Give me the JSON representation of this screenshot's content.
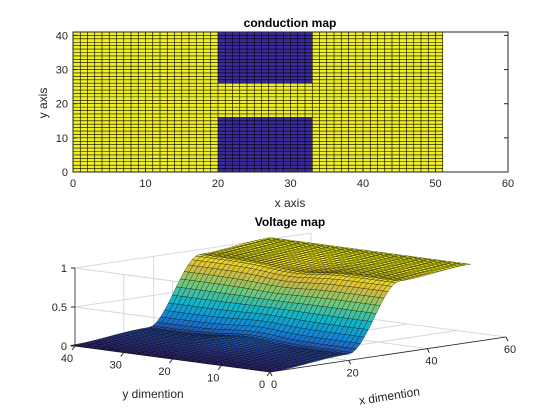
{
  "chart_data": [
    {
      "type": "heatmap",
      "title": "conduction map",
      "xlabel": "x axis",
      "ylabel": "y axis",
      "xlim": [
        0,
        60
      ],
      "ylim": [
        0,
        41
      ],
      "xticks": [
        "0",
        "10",
        "20",
        "30",
        "40",
        "50",
        "60"
      ],
      "yticks": [
        "0",
        "10",
        "20",
        "30",
        "40"
      ],
      "grid_size": {
        "nx": 51,
        "ny": 41
      },
      "values": [
        "high (yellow) conduction",
        "low (blue) conduction"
      ],
      "low_regions": [
        {
          "x": [
            20,
            33
          ],
          "y": [
            26,
            41
          ]
        },
        {
          "x": [
            20,
            33
          ],
          "y": [
            0,
            16
          ]
        }
      ],
      "colors": {
        "high": "#f0f028",
        "low": "#3a2a9a",
        "edge": "#000000"
      }
    },
    {
      "type": "surface",
      "title": "Voltage map",
      "xlabel": "x dimention",
      "ylabel": "y dimention",
      "xlim": [
        0,
        60
      ],
      "ylim": [
        0,
        40
      ],
      "zlim": [
        0,
        1
      ],
      "xticks": [
        "0",
        "20",
        "40",
        "60"
      ],
      "yticks": [
        "0",
        "10",
        "20",
        "30",
        "40"
      ],
      "zticks": [
        "0",
        "0.5",
        "1"
      ],
      "x_extent": [
        0,
        51
      ],
      "y_extent": [
        0,
        41
      ],
      "z_values": "voltage rises from 0 at x=0 to 1 at x=51, with the steepest transition between x=20 and x=33; a saddle dip appears near the gap y=16 to 26",
      "colormap": "parula"
    }
  ]
}
